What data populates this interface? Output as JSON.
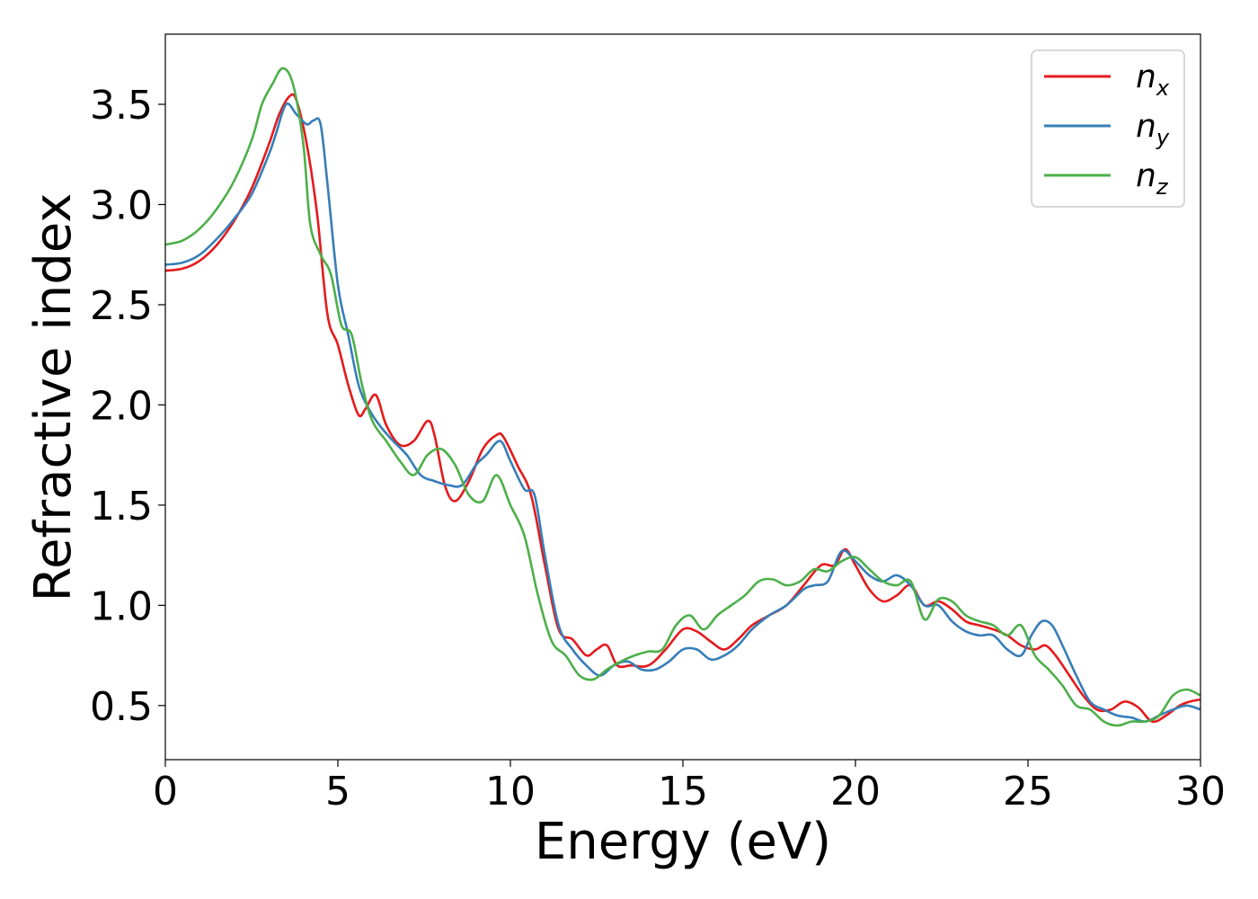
{
  "chart_data": {
    "type": "line",
    "title": "",
    "xlabel": "Energy (eV)",
    "ylabel": "Refractive index",
    "xlim": [
      0,
      30
    ],
    "ylim": [
      0.23,
      3.85
    ],
    "xticks": [
      0,
      5,
      10,
      15,
      20,
      25,
      30
    ],
    "yticks": [
      0.5,
      1.0,
      1.5,
      2.0,
      2.5,
      3.0,
      3.5
    ],
    "xtick_labels": [
      "0",
      "5",
      "10",
      "15",
      "20",
      "25",
      "30"
    ],
    "ytick_labels": [
      "0.5",
      "1.0",
      "1.5",
      "2.0",
      "2.5",
      "3.0",
      "3.5"
    ],
    "grid": false,
    "legend_position": "top-right",
    "colors": {
      "n_x": "#e41a1c",
      "n_y": "#377eb8",
      "n_z": "#4daf4a"
    },
    "series": [
      {
        "name": "n_x",
        "legend_base": "n",
        "legend_sub": "x",
        "color": "#e41a1c",
        "x": [
          0,
          0.5,
          1,
          1.5,
          2,
          2.5,
          3,
          3.3,
          3.6,
          3.8,
          4.1,
          4.4,
          4.7,
          5.0,
          5.3,
          5.6,
          5.8,
          6.1,
          6.4,
          6.8,
          7.2,
          7.6,
          7.8,
          8.1,
          8.4,
          8.8,
          9.2,
          9.6,
          9.8,
          10.2,
          10.6,
          11.0,
          11.4,
          11.8,
          12.2,
          12.5,
          12.8,
          13.1,
          13.5,
          14.0,
          14.5,
          15.0,
          15.4,
          15.8,
          16.2,
          16.6,
          17.0,
          17.5,
          18.0,
          18.5,
          19.0,
          19.4,
          19.7,
          20.0,
          20.4,
          20.8,
          21.2,
          21.6,
          22.0,
          22.4,
          22.8,
          23.2,
          23.6,
          24.0,
          24.4,
          24.8,
          25.2,
          25.5,
          25.8,
          26.2,
          26.6,
          27.0,
          27.4,
          27.8,
          28.2,
          28.6,
          29.0,
          29.4,
          29.7,
          30.0
        ],
        "y": [
          2.67,
          2.68,
          2.72,
          2.8,
          2.92,
          3.08,
          3.3,
          3.45,
          3.54,
          3.52,
          3.3,
          2.95,
          2.45,
          2.3,
          2.1,
          1.95,
          1.98,
          2.05,
          1.9,
          1.8,
          1.82,
          1.92,
          1.85,
          1.6,
          1.52,
          1.62,
          1.78,
          1.85,
          1.84,
          1.7,
          1.55,
          1.2,
          0.88,
          0.83,
          0.75,
          0.78,
          0.8,
          0.7,
          0.7,
          0.7,
          0.78,
          0.88,
          0.87,
          0.82,
          0.78,
          0.83,
          0.9,
          0.95,
          1.0,
          1.1,
          1.2,
          1.2,
          1.28,
          1.2,
          1.08,
          1.02,
          1.05,
          1.1,
          1.0,
          1.02,
          0.98,
          0.92,
          0.9,
          0.88,
          0.85,
          0.8,
          0.78,
          0.8,
          0.75,
          0.65,
          0.55,
          0.48,
          0.48,
          0.52,
          0.49,
          0.42,
          0.45,
          0.5,
          0.52,
          0.53
        ]
      },
      {
        "name": "n_y",
        "legend_base": "n",
        "legend_sub": "y",
        "color": "#377eb8",
        "x": [
          0,
          0.5,
          1,
          1.5,
          2,
          2.5,
          3,
          3.2,
          3.5,
          3.8,
          4.1,
          4.3,
          4.5,
          4.7,
          5.0,
          5.3,
          5.6,
          5.9,
          6.2,
          6.6,
          7.0,
          7.4,
          7.8,
          8.2,
          8.6,
          9.0,
          9.3,
          9.7,
          10.0,
          10.4,
          10.7,
          11.0,
          11.4,
          11.8,
          12.2,
          12.6,
          13.0,
          13.4,
          13.8,
          14.2,
          14.6,
          15.0,
          15.4,
          15.8,
          16.2,
          16.6,
          17.0,
          17.5,
          18.0,
          18.5,
          18.8,
          19.2,
          19.6,
          20.0,
          20.4,
          20.8,
          21.2,
          21.6,
          22.0,
          22.4,
          22.8,
          23.2,
          23.6,
          24.0,
          24.4,
          24.8,
          25.1,
          25.4,
          25.7,
          26.0,
          26.4,
          26.8,
          27.2,
          27.6,
          28.0,
          28.4,
          28.8,
          29.2,
          29.6,
          30.0
        ],
        "y": [
          2.7,
          2.71,
          2.75,
          2.83,
          2.93,
          3.05,
          3.25,
          3.35,
          3.5,
          3.45,
          3.4,
          3.42,
          3.4,
          3.1,
          2.6,
          2.35,
          2.1,
          1.98,
          1.9,
          1.82,
          1.75,
          1.65,
          1.62,
          1.6,
          1.6,
          1.7,
          1.75,
          1.82,
          1.72,
          1.58,
          1.55,
          1.25,
          0.9,
          0.78,
          0.7,
          0.65,
          0.7,
          0.72,
          0.68,
          0.68,
          0.72,
          0.78,
          0.78,
          0.73,
          0.75,
          0.8,
          0.88,
          0.95,
          1.0,
          1.08,
          1.1,
          1.12,
          1.27,
          1.22,
          1.15,
          1.12,
          1.15,
          1.1,
          1.0,
          1.0,
          0.92,
          0.87,
          0.85,
          0.85,
          0.78,
          0.75,
          0.85,
          0.92,
          0.9,
          0.8,
          0.65,
          0.52,
          0.48,
          0.45,
          0.44,
          0.42,
          0.45,
          0.48,
          0.5,
          0.48
        ]
      },
      {
        "name": "n_z",
        "legend_base": "n",
        "legend_sub": "z",
        "color": "#4daf4a",
        "x": [
          0,
          0.5,
          1,
          1.5,
          2,
          2.5,
          2.8,
          3.1,
          3.4,
          3.7,
          4.0,
          4.2,
          4.5,
          4.8,
          5.1,
          5.4,
          5.7,
          6.0,
          6.4,
          6.8,
          7.2,
          7.6,
          8.0,
          8.4,
          8.8,
          9.2,
          9.6,
          10.0,
          10.4,
          10.8,
          11.2,
          11.6,
          12.0,
          12.4,
          12.8,
          13.2,
          13.6,
          14.0,
          14.4,
          14.8,
          15.2,
          15.6,
          16.0,
          16.4,
          16.8,
          17.2,
          17.6,
          18.0,
          18.4,
          18.8,
          19.2,
          19.6,
          20.0,
          20.4,
          20.8,
          21.2,
          21.6,
          22.0,
          22.4,
          22.8,
          23.2,
          23.6,
          24.0,
          24.4,
          24.8,
          25.2,
          25.6,
          26.0,
          26.4,
          26.8,
          27.2,
          27.6,
          28.0,
          28.4,
          28.8,
          29.2,
          29.6,
          30.0
        ],
        "y": [
          2.8,
          2.82,
          2.88,
          2.98,
          3.12,
          3.32,
          3.5,
          3.6,
          3.68,
          3.6,
          3.3,
          2.9,
          2.75,
          2.65,
          2.4,
          2.35,
          2.1,
          1.92,
          1.82,
          1.72,
          1.65,
          1.75,
          1.78,
          1.7,
          1.55,
          1.52,
          1.65,
          1.5,
          1.35,
          1.05,
          0.82,
          0.75,
          0.65,
          0.63,
          0.68,
          0.72,
          0.75,
          0.77,
          0.78,
          0.9,
          0.95,
          0.88,
          0.95,
          1.0,
          1.05,
          1.12,
          1.13,
          1.1,
          1.12,
          1.18,
          1.17,
          1.22,
          1.24,
          1.18,
          1.12,
          1.1,
          1.12,
          0.93,
          1.03,
          1.02,
          0.95,
          0.92,
          0.9,
          0.85,
          0.9,
          0.75,
          0.68,
          0.6,
          0.5,
          0.48,
          0.42,
          0.4,
          0.42,
          0.42,
          0.45,
          0.55,
          0.58,
          0.55
        ]
      }
    ]
  }
}
